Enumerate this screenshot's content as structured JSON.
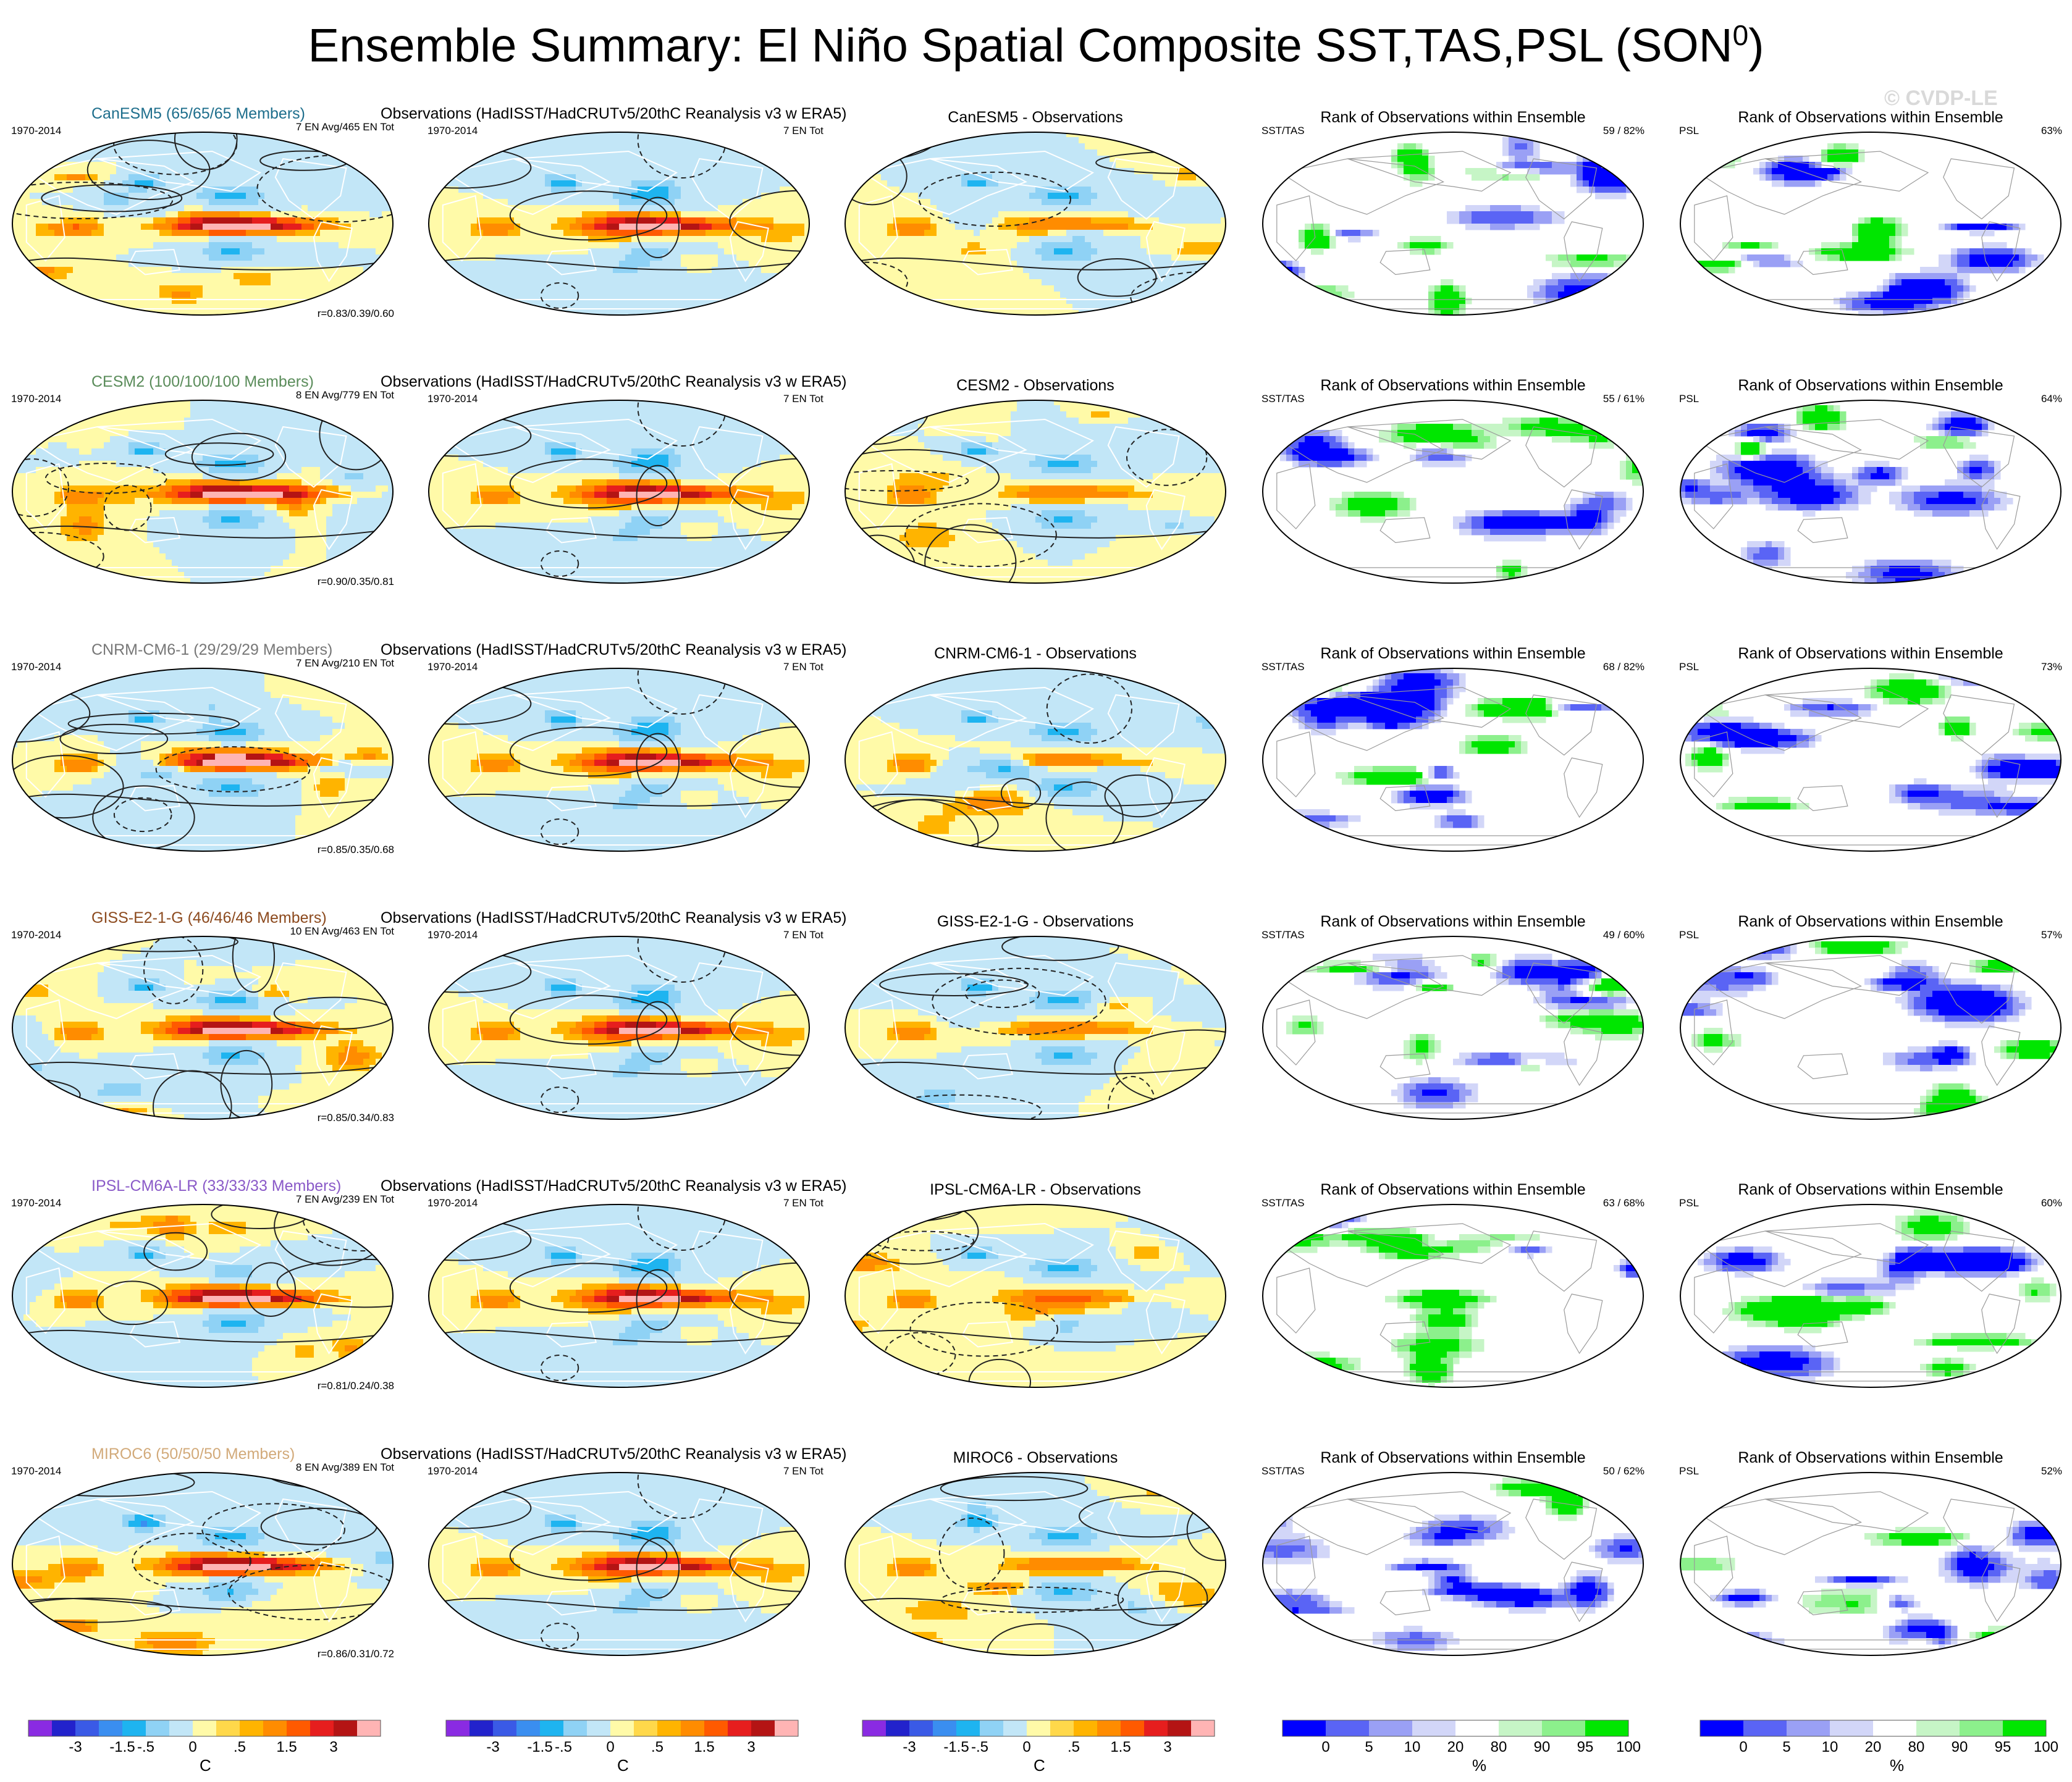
{
  "title": {
    "main": "Ensemble Summary: El Niño Spatial Composite SST,TAS,PSL (SON",
    "sup": "0",
    "end": ")"
  },
  "watermark": "© CVDP-LE",
  "colors": {
    "temp_levels": [
      "#8a2be2",
      "#2222cc",
      "#3a5ae6",
      "#3a8ef0",
      "#1eb4f0",
      "#8fd2f5",
      "#c2e6f7",
      "#fffaa8",
      "#ffd84a",
      "#ffb400",
      "#ff8c00",
      "#ff5a00",
      "#e61e1e",
      "#b41414",
      "#ffb4b4"
    ],
    "rank_levels": [
      "#0000ff",
      "#5a64f5",
      "#9aa0f5",
      "#d2d6f8",
      "#ffffff",
      "#c6f5c6",
      "#8cf08c",
      "#00e600"
    ],
    "map_background": "#ffffff",
    "contour": "#222222"
  },
  "rows": [
    {
      "model": "CanESM5",
      "model_color": "#1e6e8c",
      "ens_title": "CanESM5 (65/65/65 Members)",
      "period": "1970-2014",
      "ens_info": "7 EN Avg/465 EN Tot",
      "corr": "r=0.83/0.39/0.60",
      "obs_title": "Observations (HadISST/HadCRUTv5/20thC Reanalysis v3 w ERA5)",
      "obs_period": "1970-2014",
      "obs_info": "7 EN Tot",
      "diff_title": "CanESM5 - Observations",
      "rank_title": "Rank of Observations within Ensemble",
      "rank_var1": "SST/TAS",
      "rank_pct1": "59 /  82%",
      "rank_var2": "PSL",
      "rank_pct2": "63%"
    },
    {
      "model": "CESM2",
      "model_color": "#5a8c5a",
      "ens_title": "CESM2 (100/100/100 Members)",
      "period": "1970-2014",
      "ens_info": "8 EN Avg/779 EN Tot",
      "corr": "r=0.90/0.35/0.81",
      "obs_title": "Observations (HadISST/HadCRUTv5/20thC Reanalysis v3 w ERA5)",
      "obs_period": "1970-2014",
      "obs_info": "7 EN Tot",
      "diff_title": "CESM2 - Observations",
      "rank_title": "Rank of Observations within Ensemble",
      "rank_var1": "SST/TAS",
      "rank_pct1": "55 /  61%",
      "rank_var2": "PSL",
      "rank_pct2": "64%"
    },
    {
      "model": "CNRM-CM6-1",
      "model_color": "#777777",
      "ens_title": "CNRM-CM6-1 (29/29/29 Members)",
      "period": "1970-2014",
      "ens_info": "7 EN Avg/210 EN Tot",
      "corr": "r=0.85/0.35/0.68",
      "obs_title": "Observations (HadISST/HadCRUTv5/20thC Reanalysis v3 w ERA5)",
      "obs_period": "1970-2014",
      "obs_info": "7 EN Tot",
      "diff_title": "CNRM-CM6-1 - Observations",
      "rank_title": "Rank of Observations within Ensemble",
      "rank_var1": "SST/TAS",
      "rank_pct1": "68 /  82%",
      "rank_var2": "PSL",
      "rank_pct2": "73%"
    },
    {
      "model": "GISS-E2-1-G",
      "model_color": "#8c4a1e",
      "ens_title": "GISS-E2-1-G (46/46/46 Members)",
      "period": "1970-2014",
      "ens_info": "10 EN Avg/463 EN Tot",
      "corr": "r=0.85/0.34/0.83",
      "obs_title": "Observations (HadISST/HadCRUTv5/20thC Reanalysis v3 w ERA5)",
      "obs_period": "1970-2014",
      "obs_info": "7 EN Tot",
      "diff_title": "GISS-E2-1-G - Observations",
      "rank_title": "Rank of Observations within Ensemble",
      "rank_var1": "SST/TAS",
      "rank_pct1": "49 /  60%",
      "rank_var2": "PSL",
      "rank_pct2": "57%"
    },
    {
      "model": "IPSL-CM6A-LR",
      "model_color": "#8a5ac8",
      "ens_title": "IPSL-CM6A-LR (33/33/33 Members)",
      "period": "1970-2014",
      "ens_info": "7 EN Avg/239 EN Tot",
      "corr": "r=0.81/0.24/0.38",
      "obs_title": "Observations (HadISST/HadCRUTv5/20thC Reanalysis v3 w ERA5)",
      "obs_period": "1970-2014",
      "obs_info": "7 EN Tot",
      "diff_title": "IPSL-CM6A-LR - Observations",
      "rank_title": "Rank of Observations within Ensemble",
      "rank_var1": "SST/TAS",
      "rank_pct1": "63 /  68%",
      "rank_var2": "PSL",
      "rank_pct2": "60%"
    },
    {
      "model": "MIROC6",
      "model_color": "#d2aa7a",
      "ens_title": "MIROC6 (50/50/50 Members)",
      "period": "1970-2014",
      "ens_info": "8 EN Avg/389 EN Tot",
      "corr": "r=0.86/0.31/0.72",
      "obs_title": "Observations (HadISST/HadCRUTv5/20thC Reanalysis v3 w ERA5)",
      "obs_period": "1970-2014",
      "obs_info": "7 EN Tot",
      "diff_title": "MIROC6 - Observations",
      "rank_title": "Rank of Observations within Ensemble",
      "rank_var1": "SST/TAS",
      "rank_pct1": "50 /  62%",
      "rank_var2": "PSL",
      "rank_pct2": "52%"
    }
  ],
  "colorbars": {
    "temp": {
      "labels": [
        "-3",
        "-1.5",
        "-.5",
        "0",
        ".5",
        "1.5",
        "3"
      ],
      "unit": "C"
    },
    "rank": {
      "labels": [
        "0",
        "5",
        "10",
        "20",
        "80",
        "90",
        "95",
        "100"
      ],
      "unit": "%"
    }
  }
}
